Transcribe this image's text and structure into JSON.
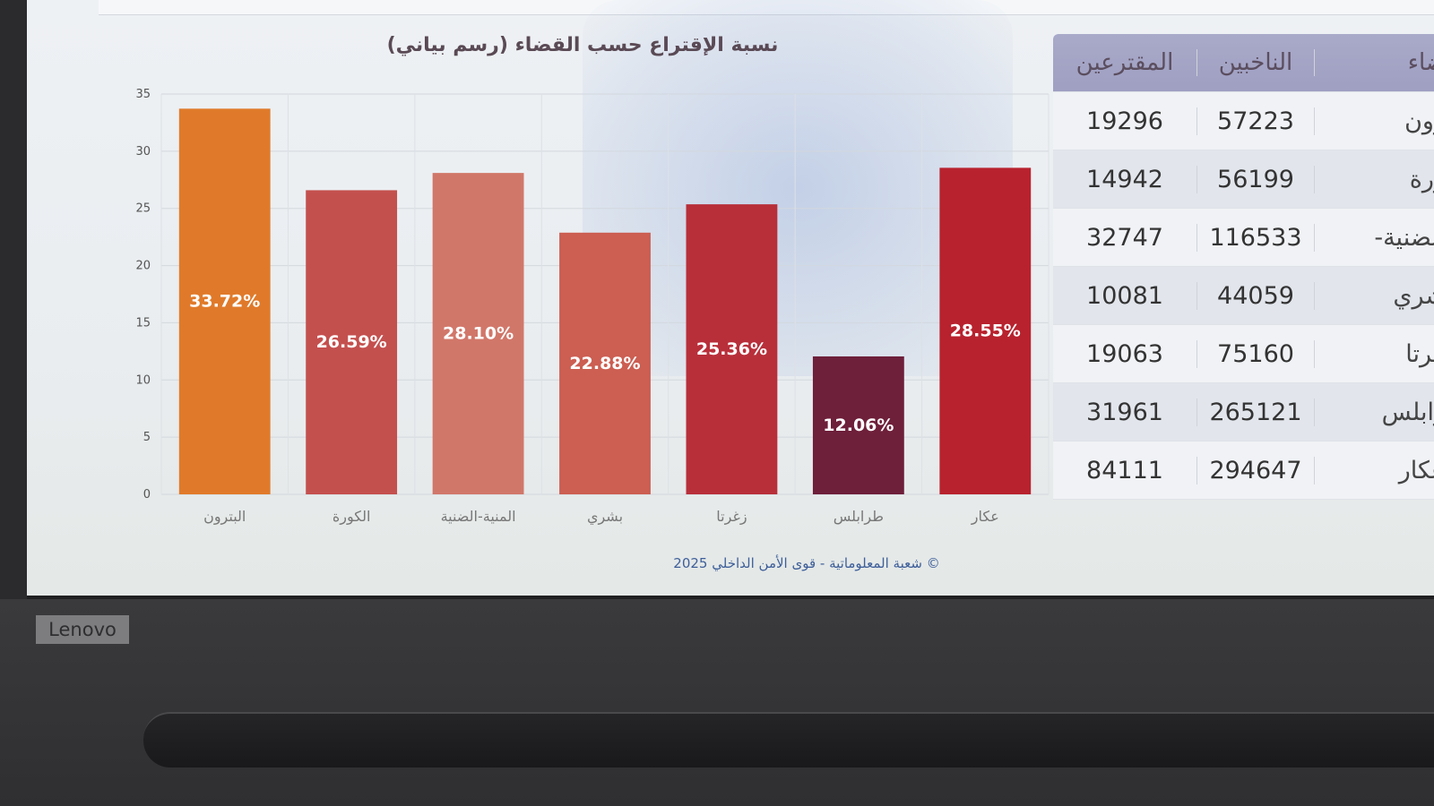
{
  "chart_data": {
    "type": "bar",
    "title": "نسبة الإقتراع حسب القضاء (رسم بياني)",
    "categories": [
      "البترون",
      "الكورة",
      "المنية-الضنية",
      "بشري",
      "زغرتا",
      "طرابلس",
      "عكار"
    ],
    "values": [
      33.72,
      26.59,
      28.1,
      22.88,
      25.36,
      12.06,
      28.55
    ],
    "data_labels": [
      "33.72%",
      "26.59%",
      "28.10%",
      "22.88%",
      "25.36%",
      "12.06%",
      "28.55%"
    ],
    "colors": [
      "#e07a2a",
      "#c4504e",
      "#d1776a",
      "#cc5e52",
      "#b82f3a",
      "#6e1f3a",
      "#b8222e"
    ],
    "yticks": [
      "0",
      "5",
      "10",
      "15",
      "20",
      "25",
      "30",
      "35"
    ],
    "ylim": [
      0,
      35
    ],
    "grid": true,
    "xlabel": "",
    "ylabel": ""
  },
  "table": {
    "headers": [
      "المقترعين",
      "الناخبين",
      "ضاء"
    ],
    "rows": [
      [
        "19296",
        "57223",
        "رون"
      ],
      [
        "14942",
        "56199",
        "ورة"
      ],
      [
        "32747",
        "116533",
        "-الضنية"
      ],
      [
        "10081",
        "44059",
        "شري"
      ],
      [
        "19063",
        "75160",
        "غرتا"
      ],
      [
        "31961",
        "265121",
        "رابلس"
      ],
      [
        "84111",
        "294647",
        "عكار"
      ]
    ]
  },
  "footer": "© شعبة المعلوماتية - قوى الأمن الداخلي 2025",
  "laptop_brand": "Lenovo"
}
